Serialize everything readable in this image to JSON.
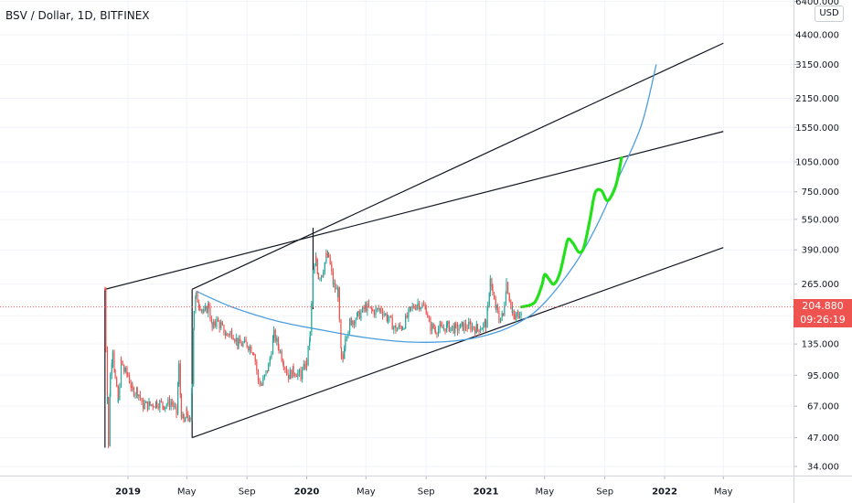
{
  "header": {
    "symbol_title": "BSV / Dollar, 1D, BITFINEX",
    "currency_badge": "USD"
  },
  "price_tag": {
    "price": "204.880",
    "countdown": "09:26:19"
  },
  "colors": {
    "up_candle": "#26a69a",
    "down_candle": "#ef5350",
    "price_line": "#ef5350",
    "trend_line": "#131722",
    "curve": "#4a9ee0",
    "projection": "#22e01a",
    "grid": "#f0f3fa"
  },
  "chart_data": {
    "type": "candlestick",
    "scale": "log",
    "ylim": [
      30,
      6400
    ],
    "y_ticks": [
      "6400.000",
      "4400.000",
      "3150.000",
      "2150.000",
      "1550.000",
      "1050.000",
      "750.000",
      "550.000",
      "390.000",
      "265.000",
      "185.000",
      "135.000",
      "95.000",
      "67.000",
      "47.000",
      "34.000"
    ],
    "x_ticks": [
      {
        "label": "2019",
        "bold": true,
        "date": "2019-01-01"
      },
      {
        "label": "May",
        "bold": false,
        "date": "2019-05-01"
      },
      {
        "label": "Sep",
        "bold": false,
        "date": "2019-09-01"
      },
      {
        "label": "2020",
        "bold": true,
        "date": "2020-01-01"
      },
      {
        "label": "May",
        "bold": false,
        "date": "2020-05-01"
      },
      {
        "label": "Sep",
        "bold": false,
        "date": "2020-09-01"
      },
      {
        "label": "2021",
        "bold": true,
        "date": "2021-01-01"
      },
      {
        "label": "May",
        "bold": false,
        "date": "2021-05-01"
      },
      {
        "label": "Sep",
        "bold": false,
        "date": "2021-09-01"
      },
      {
        "label": "2022",
        "bold": true,
        "date": "2022-01-01"
      },
      {
        "label": "May",
        "bold": false,
        "date": "2022-05-01"
      }
    ],
    "last_price": 204.88,
    "price_path": [
      [
        "2018-11-15",
        250
      ],
      [
        "2018-11-17",
        130
      ],
      [
        "2018-11-20",
        75
      ],
      [
        "2018-11-22",
        42
      ],
      [
        "2018-11-26",
        95
      ],
      [
        "2018-12-01",
        130
      ],
      [
        "2018-12-06",
        90
      ],
      [
        "2018-12-12",
        70
      ],
      [
        "2018-12-18",
        110
      ],
      [
        "2018-12-24",
        100
      ],
      [
        "2019-01-01",
        95
      ],
      [
        "2019-01-10",
        80
      ],
      [
        "2019-01-20",
        80
      ],
      [
        "2019-02-01",
        68
      ],
      [
        "2019-02-15",
        68
      ],
      [
        "2019-03-01",
        70
      ],
      [
        "2019-03-15",
        68
      ],
      [
        "2019-04-01",
        70
      ],
      [
        "2019-04-10",
        62
      ],
      [
        "2019-04-15",
        105
      ],
      [
        "2019-04-20",
        62
      ],
      [
        "2019-04-25",
        55
      ],
      [
        "2019-05-01",
        62
      ],
      [
        "2019-05-08",
        55
      ],
      [
        "2019-05-12",
        90
      ],
      [
        "2019-05-16",
        200
      ],
      [
        "2019-05-20",
        230
      ],
      [
        "2019-05-28",
        210
      ],
      [
        "2019-06-05",
        190
      ],
      [
        "2019-06-15",
        210
      ],
      [
        "2019-06-22",
        160
      ],
      [
        "2019-07-01",
        175
      ],
      [
        "2019-07-10",
        165
      ],
      [
        "2019-07-20",
        150
      ],
      [
        "2019-08-01",
        155
      ],
      [
        "2019-08-15",
        135
      ],
      [
        "2019-09-01",
        135
      ],
      [
        "2019-09-15",
        125
      ],
      [
        "2019-09-24",
        90
      ],
      [
        "2019-10-01",
        85
      ],
      [
        "2019-10-15",
        105
      ],
      [
        "2019-10-26",
        150
      ],
      [
        "2019-11-05",
        130
      ],
      [
        "2019-11-15",
        110
      ],
      [
        "2019-11-25",
        95
      ],
      [
        "2019-12-05",
        100
      ],
      [
        "2019-12-20",
        95
      ],
      [
        "2020-01-01",
        110
      ],
      [
        "2020-01-08",
        150
      ],
      [
        "2020-01-14",
        290
      ],
      [
        "2020-01-20",
        350
      ],
      [
        "2020-01-25",
        290
      ],
      [
        "2020-02-01",
        300
      ],
      [
        "2020-02-10",
        360
      ],
      [
        "2020-02-15",
        360
      ],
      [
        "2020-02-25",
        260
      ],
      [
        "2020-03-05",
        240
      ],
      [
        "2020-03-12",
        110
      ],
      [
        "2020-03-15",
        115
      ],
      [
        "2020-03-20",
        150
      ],
      [
        "2020-04-01",
        175
      ],
      [
        "2020-04-15",
        185
      ],
      [
        "2020-05-01",
        205
      ],
      [
        "2020-05-15",
        195
      ],
      [
        "2020-06-01",
        200
      ],
      [
        "2020-06-15",
        180
      ],
      [
        "2020-07-01",
        160
      ],
      [
        "2020-07-15",
        165
      ],
      [
        "2020-08-01",
        200
      ],
      [
        "2020-08-15",
        215
      ],
      [
        "2020-09-01",
        200
      ],
      [
        "2020-09-10",
        165
      ],
      [
        "2020-09-20",
        160
      ],
      [
        "2020-10-01",
        160
      ],
      [
        "2020-10-15",
        165
      ],
      [
        "2020-11-01",
        160
      ],
      [
        "2020-11-15",
        165
      ],
      [
        "2020-12-01",
        165
      ],
      [
        "2020-12-15",
        160
      ],
      [
        "2021-01-01",
        170
      ],
      [
        "2021-01-05",
        200
      ],
      [
        "2021-01-10",
        290
      ],
      [
        "2021-01-15",
        230
      ],
      [
        "2021-01-22",
        200
      ],
      [
        "2021-01-28",
        180
      ],
      [
        "2021-02-05",
        185
      ],
      [
        "2021-02-12",
        270
      ],
      [
        "2021-02-18",
        230
      ],
      [
        "2021-02-24",
        190
      ],
      [
        "2021-03-01",
        180
      ],
      [
        "2021-03-08",
        190
      ],
      [
        "2021-03-15",
        205
      ]
    ],
    "trend_lines": [
      {
        "name": "upper-resistance",
        "from": [
          "2018-11-15",
          250
        ],
        "to": [
          "2022-05-01",
          1480
        ]
      },
      {
        "name": "upper-channel",
        "from": [
          "2019-05-12",
          250
        ],
        "to": [
          "2022-05-01",
          4000
        ]
      },
      {
        "name": "lower-support",
        "from": [
          "2019-05-12",
          47
        ],
        "to": [
          "2022-05-01",
          400
        ]
      },
      {
        "name": "drop-from-2019-high",
        "from": [
          "2018-11-15",
          250
        ],
        "to": [
          "2018-11-15",
          42
        ]
      },
      {
        "name": "drop-to-2019-low",
        "from": [
          "2019-05-12",
          250
        ],
        "to": [
          "2019-05-12",
          47
        ]
      },
      {
        "name": "rise-2020-peak",
        "from": [
          "2020-01-14",
          500
        ],
        "to": [
          "2020-01-14",
          200
        ]
      }
    ],
    "parabolic_curve": [
      [
        "2019-05-20",
        245
      ],
      [
        "2019-08-01",
        205
      ],
      [
        "2019-11-01",
        175
      ],
      [
        "2020-02-01",
        158
      ],
      [
        "2020-05-01",
        145
      ],
      [
        "2020-08-01",
        138
      ],
      [
        "2020-11-01",
        140
      ],
      [
        "2021-01-15",
        152
      ],
      [
        "2021-03-15",
        175
      ],
      [
        "2021-05-01",
        215
      ],
      [
        "2021-07-01",
        330
      ],
      [
        "2021-08-15",
        510
      ],
      [
        "2021-10-01",
        900
      ],
      [
        "2021-11-15",
        1600
      ],
      [
        "2021-12-15",
        3150
      ]
    ],
    "projection_path": [
      [
        "2021-03-15",
        205
      ],
      [
        "2021-04-10",
        215
      ],
      [
        "2021-04-25",
        260
      ],
      [
        "2021-05-01",
        295
      ],
      [
        "2021-05-10",
        280
      ],
      [
        "2021-05-20",
        265
      ],
      [
        "2021-06-01",
        300
      ],
      [
        "2021-06-12",
        390
      ],
      [
        "2021-06-18",
        440
      ],
      [
        "2021-06-28",
        420
      ],
      [
        "2021-07-10",
        380
      ],
      [
        "2021-07-20",
        400
      ],
      [
        "2021-08-01",
        540
      ],
      [
        "2021-08-12",
        740
      ],
      [
        "2021-08-25",
        760
      ],
      [
        "2021-09-05",
        680
      ],
      [
        "2021-09-15",
        720
      ],
      [
        "2021-09-25",
        830
      ],
      [
        "2021-10-05",
        1100
      ]
    ]
  }
}
